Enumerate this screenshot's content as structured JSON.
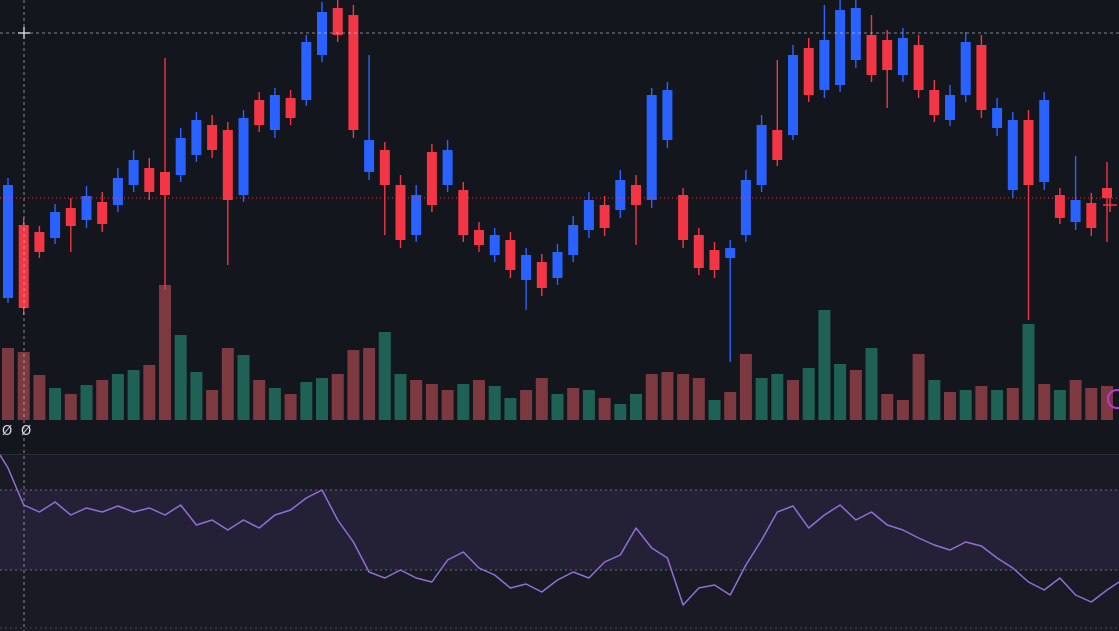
{
  "colors": {
    "background": "#14161d",
    "pane_background": "#1a1a25",
    "band": "rgba(126,87,194,0.10)",
    "up": "#2962ff",
    "down": "#f23645",
    "volume_up": "#1f6154",
    "volume_down": "#7d3940",
    "grid": "rgba(195,200,210,0.45)",
    "crosshair": "rgba(222,226,234,0.55)",
    "crosshair_marker": "#dfe3ea",
    "price_line": "#f23645",
    "oscillator_line": "#8f6fd8",
    "separator": "#2b2f3a",
    "text": "#d8dbe3",
    "highlight_ring": "#bb36d8"
  },
  "markers": {
    "null_left": "Ø",
    "null_right": "Ø"
  },
  "chart_data": {
    "type": "candlestick",
    "description": "Dark-theme trading chart: candlestick price pane (blue up / red down) with volume histogram, dashed crosshair, red dotted last-price line, and a lower purple oscillator pane with dashed 70/30 levels",
    "x_count": 71,
    "grid": "dashed",
    "panes": [
      {
        "name": "price",
        "ylim": [
          89,
          132
        ],
        "price_line": {
          "value": 112.2
        },
        "candles": [
          [
            102.2,
            114.2,
            101.7,
            113.5
          ],
          [
            109.5,
            110.2,
            100.5,
            101.2
          ],
          [
            108.8,
            109.4,
            106.2,
            106.8
          ],
          [
            108.2,
            111.6,
            107.6,
            110.8
          ],
          [
            111.2,
            112.2,
            106.8,
            109.4
          ],
          [
            110.0,
            113.4,
            109.2,
            112.4
          ],
          [
            111.8,
            112.8,
            108.8,
            109.6
          ],
          [
            111.5,
            115.2,
            110.8,
            114.2
          ],
          [
            113.5,
            117.0,
            112.8,
            116.0
          ],
          [
            115.2,
            116.2,
            112.0,
            112.8
          ],
          [
            114.8,
            126.2,
            103.0,
            112.5
          ],
          [
            114.5,
            119.2,
            113.8,
            118.2
          ],
          [
            116.5,
            120.8,
            115.8,
            120.0
          ],
          [
            119.5,
            120.5,
            116.2,
            117.0
          ],
          [
            119.0,
            119.8,
            105.5,
            112.0
          ],
          [
            112.5,
            121.0,
            111.8,
            120.2
          ],
          [
            122.0,
            122.8,
            118.8,
            119.5
          ],
          [
            119.0,
            123.2,
            118.2,
            122.5
          ],
          [
            122.2,
            123.0,
            119.5,
            120.2
          ],
          [
            122.0,
            128.5,
            121.4,
            127.8
          ],
          [
            126.5,
            131.8,
            125.8,
            130.8
          ],
          [
            131.2,
            132.0,
            127.8,
            128.5
          ],
          [
            130.5,
            131.5,
            118.2,
            119.0
          ],
          [
            114.8,
            126.5,
            114.0,
            118.0
          ],
          [
            117.0,
            117.8,
            108.5,
            113.5
          ],
          [
            113.5,
            114.5,
            107.2,
            108.0
          ],
          [
            108.5,
            113.5,
            107.8,
            112.5
          ],
          [
            116.8,
            117.6,
            110.8,
            111.5
          ],
          [
            113.5,
            118.0,
            112.8,
            117.0
          ],
          [
            113.0,
            113.8,
            107.8,
            108.5
          ],
          [
            109.0,
            109.8,
            106.8,
            107.5
          ],
          [
            106.5,
            109.2,
            105.8,
            108.5
          ],
          [
            108.0,
            108.8,
            104.2,
            105.0
          ],
          [
            104.0,
            107.2,
            101.0,
            106.5
          ],
          [
            105.8,
            106.6,
            102.4,
            103.2
          ],
          [
            104.2,
            107.6,
            103.5,
            106.8
          ],
          [
            106.5,
            110.4,
            105.8,
            109.5
          ],
          [
            109.0,
            112.8,
            108.2,
            112.0
          ],
          [
            111.5,
            112.4,
            108.4,
            109.2
          ],
          [
            111.0,
            115.0,
            110.2,
            114.0
          ],
          [
            113.5,
            114.5,
            107.5,
            111.5
          ],
          [
            112.0,
            123.2,
            111.2,
            122.5
          ],
          [
            118.0,
            123.8,
            117.2,
            123.0
          ],
          [
            112.5,
            113.2,
            107.2,
            108.0
          ],
          [
            108.5,
            109.2,
            104.5,
            105.2
          ],
          [
            107.0,
            107.8,
            104.2,
            105.0
          ],
          [
            106.2,
            108.0,
            95.8,
            107.2
          ],
          [
            108.5,
            115.0,
            107.8,
            114.0
          ],
          [
            113.5,
            120.5,
            112.8,
            119.5
          ],
          [
            119.0,
            126.0,
            115.4,
            116.0
          ],
          [
            118.5,
            127.5,
            118.0,
            126.5
          ],
          [
            127.2,
            128.2,
            121.8,
            122.5
          ],
          [
            123.0,
            131.5,
            122.2,
            128.0
          ],
          [
            123.5,
            132.0,
            122.8,
            131.0
          ],
          [
            126.0,
            132.0,
            125.2,
            131.2
          ],
          [
            128.5,
            130.5,
            123.8,
            124.5
          ],
          [
            128.0,
            129.0,
            121.2,
            125.0
          ],
          [
            124.5,
            129.2,
            123.8,
            128.2
          ],
          [
            127.5,
            128.5,
            122.2,
            123.0
          ],
          [
            123.0,
            124.0,
            119.8,
            120.5
          ],
          [
            120.0,
            123.5,
            119.4,
            122.5
          ],
          [
            122.5,
            128.8,
            121.8,
            127.8
          ],
          [
            127.5,
            128.5,
            120.2,
            121.0
          ],
          [
            119.2,
            122.2,
            118.4,
            121.2
          ],
          [
            113.0,
            120.8,
            112.2,
            120.0
          ],
          [
            120.0,
            121.0,
            100.0,
            113.5
          ],
          [
            113.8,
            122.8,
            113.0,
            122.0
          ],
          [
            112.5,
            113.2,
            109.6,
            110.2
          ],
          [
            109.8,
            116.4,
            109.0,
            112.0
          ],
          [
            111.7,
            112.7,
            108.4,
            109.2
          ],
          [
            113.2,
            115.8,
            107.8,
            112.2
          ]
        ],
        "volume": [
          [
            72,
            "down"
          ],
          [
            68,
            "down"
          ],
          [
            45,
            "down"
          ],
          [
            32,
            "up"
          ],
          [
            26,
            "down"
          ],
          [
            35,
            "up"
          ],
          [
            40,
            "down"
          ],
          [
            46,
            "up"
          ],
          [
            50,
            "up"
          ],
          [
            55,
            "down"
          ],
          [
            135,
            "down"
          ],
          [
            85,
            "up"
          ],
          [
            48,
            "up"
          ],
          [
            30,
            "down"
          ],
          [
            72,
            "down"
          ],
          [
            65,
            "up"
          ],
          [
            40,
            "down"
          ],
          [
            32,
            "up"
          ],
          [
            26,
            "down"
          ],
          [
            38,
            "up"
          ],
          [
            42,
            "up"
          ],
          [
            46,
            "down"
          ],
          [
            70,
            "down"
          ],
          [
            72,
            "down"
          ],
          [
            88,
            "up"
          ],
          [
            46,
            "up"
          ],
          [
            40,
            "down"
          ],
          [
            36,
            "down"
          ],
          [
            30,
            "down"
          ],
          [
            36,
            "up"
          ],
          [
            40,
            "down"
          ],
          [
            34,
            "up"
          ],
          [
            22,
            "up"
          ],
          [
            30,
            "down"
          ],
          [
            42,
            "down"
          ],
          [
            26,
            "up"
          ],
          [
            32,
            "down"
          ],
          [
            30,
            "up"
          ],
          [
            22,
            "down"
          ],
          [
            16,
            "up"
          ],
          [
            26,
            "up"
          ],
          [
            46,
            "down"
          ],
          [
            48,
            "down"
          ],
          [
            46,
            "down"
          ],
          [
            42,
            "down"
          ],
          [
            20,
            "up"
          ],
          [
            28,
            "down"
          ],
          [
            66,
            "down"
          ],
          [
            42,
            "up"
          ],
          [
            46,
            "up"
          ],
          [
            40,
            "down"
          ],
          [
            52,
            "up"
          ],
          [
            110,
            "up"
          ],
          [
            56,
            "up"
          ],
          [
            50,
            "down"
          ],
          [
            72,
            "up"
          ],
          [
            26,
            "down"
          ],
          [
            20,
            "down"
          ],
          [
            66,
            "down"
          ],
          [
            40,
            "up"
          ],
          [
            28,
            "down"
          ],
          [
            30,
            "up"
          ],
          [
            34,
            "down"
          ],
          [
            30,
            "up"
          ],
          [
            32,
            "down"
          ],
          [
            96,
            "up"
          ],
          [
            36,
            "down"
          ],
          [
            30,
            "up"
          ],
          [
            40,
            "down"
          ],
          [
            32,
            "down"
          ],
          [
            34,
            "down"
          ]
        ]
      },
      {
        "name": "oscillator",
        "ylim": [
          0,
          100
        ],
        "levels": [
          70,
          30
        ],
        "edge_start": 87.5,
        "edge_end": 24,
        "values": [
          81,
          62.5,
          59,
          64,
          57.5,
          61,
          59,
          62,
          59,
          61,
          57.5,
          62.5,
          52.5,
          55,
          50,
          55,
          51,
          57.5,
          60,
          66,
          70,
          55,
          44,
          29,
          26,
          30,
          26,
          24,
          35,
          39,
          31,
          27.5,
          21,
          23,
          19,
          25,
          29,
          26,
          34,
          37.5,
          51,
          41,
          36,
          12.5,
          21,
          22.5,
          17.5,
          32.5,
          45,
          59,
          62,
          51,
          57.5,
          62.5,
          55,
          59,
          52.5,
          50,
          46,
          42.5,
          40,
          44,
          42,
          36,
          31,
          24,
          20,
          26,
          17.5,
          14,
          20
        ]
      }
    ],
    "crosshair": {
      "index": 1,
      "price": 128.7
    }
  }
}
